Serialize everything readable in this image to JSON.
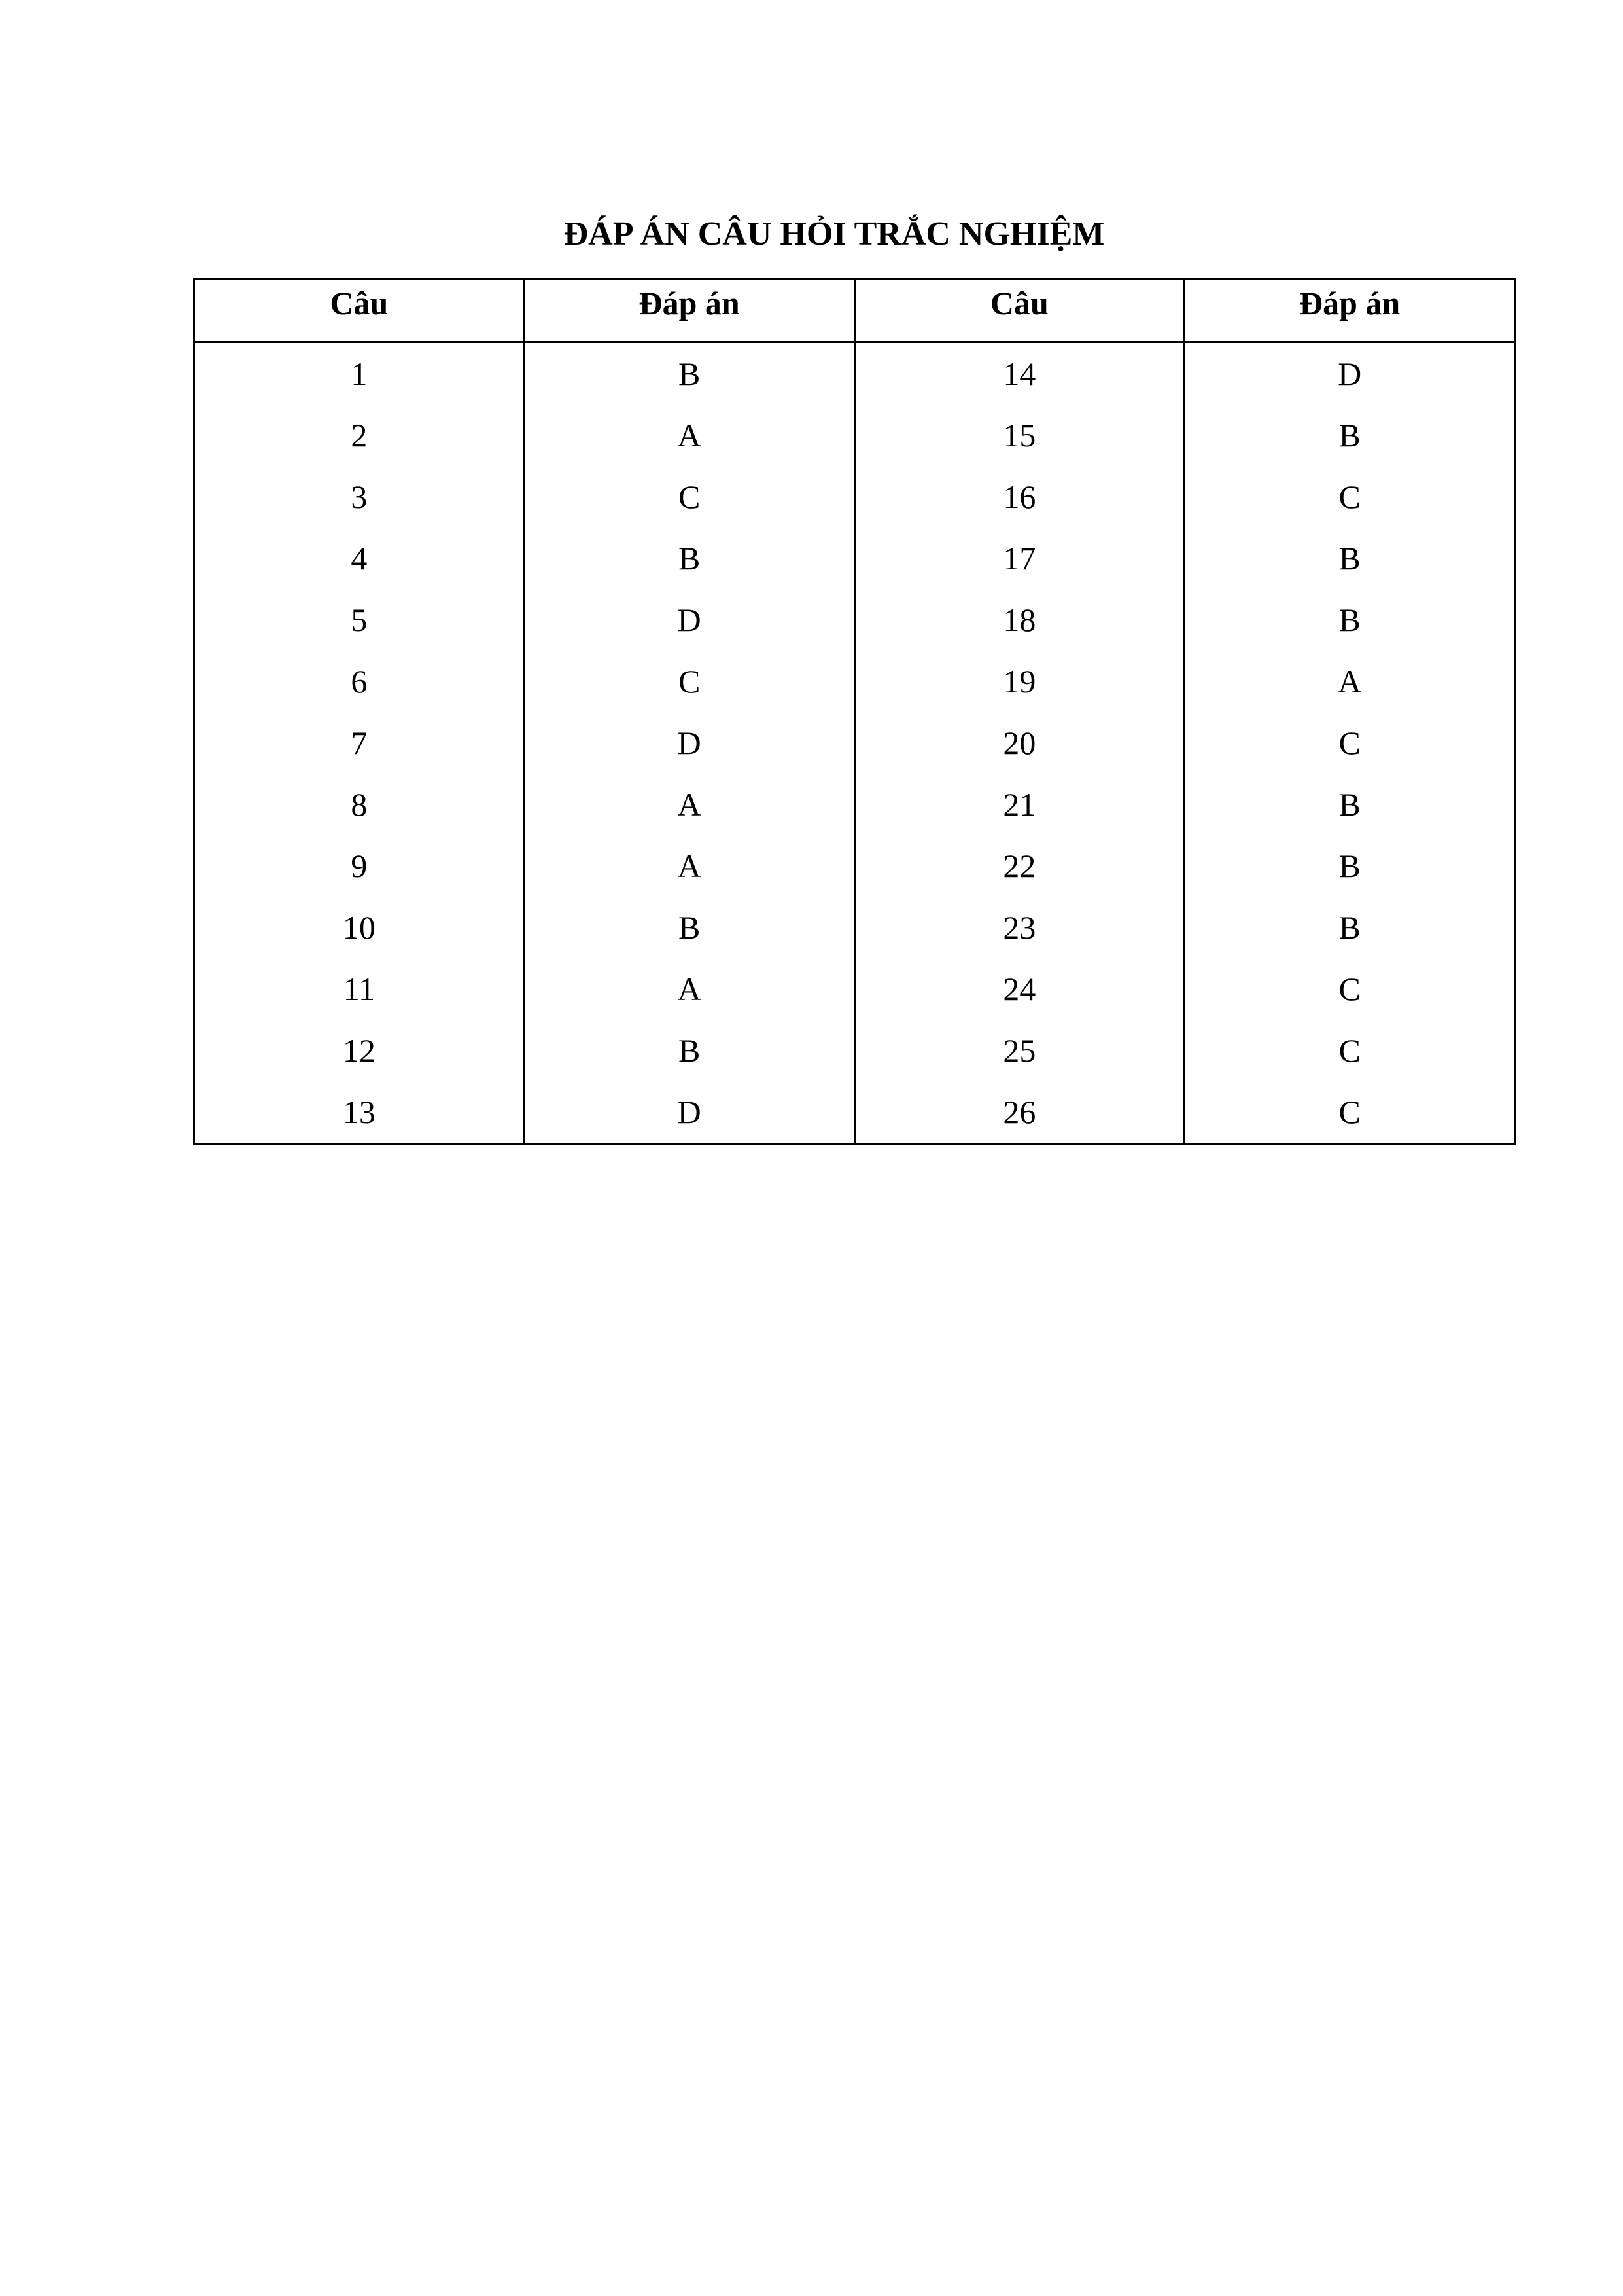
{
  "title": "ĐÁP ÁN CÂU HỎI TRẮC NGHIỆM",
  "headers": [
    "Câu",
    "Đáp án",
    "Câu",
    "Đáp án"
  ],
  "rows": [
    [
      "1",
      "B",
      "14",
      "D"
    ],
    [
      "2",
      "A",
      "15",
      "B"
    ],
    [
      "3",
      "C",
      "16",
      "C"
    ],
    [
      "4",
      "B",
      "17",
      "B"
    ],
    [
      "5",
      "D",
      "18",
      "B"
    ],
    [
      "6",
      "C",
      "19",
      "A"
    ],
    [
      "7",
      "D",
      "20",
      "C"
    ],
    [
      "8",
      "A",
      "21",
      "B"
    ],
    [
      "9",
      "A",
      "22",
      "B"
    ],
    [
      "10",
      "B",
      "23",
      "B"
    ],
    [
      "11",
      "A",
      "24",
      "C"
    ],
    [
      "12",
      "B",
      "25",
      "C"
    ],
    [
      "13",
      "D",
      "26",
      "C"
    ]
  ]
}
